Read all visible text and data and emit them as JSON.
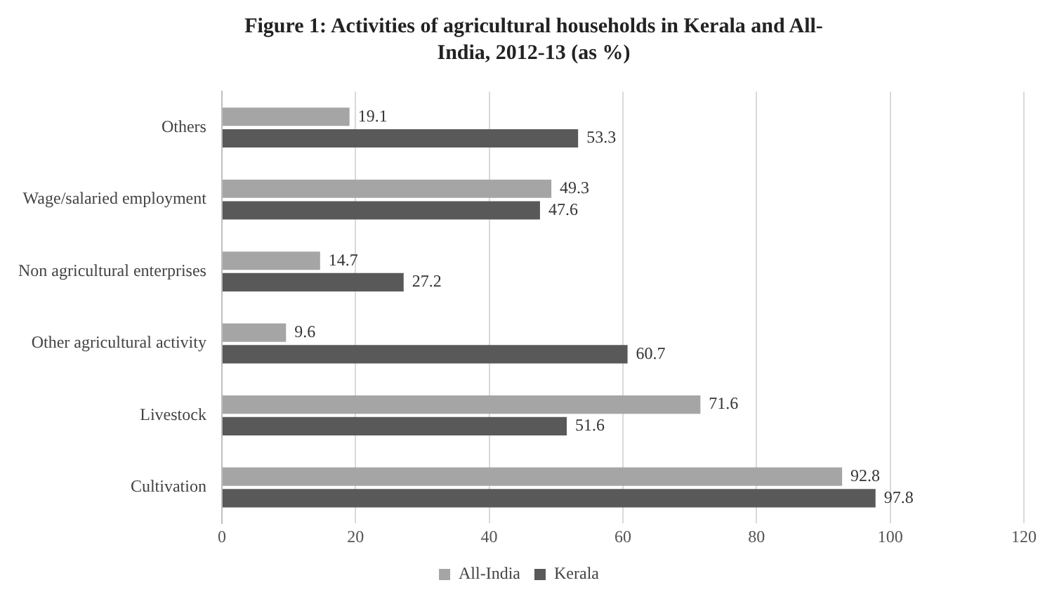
{
  "chart_data": {
    "type": "bar",
    "orientation": "horizontal",
    "title": "Figure 1: Activities of agricultural households in Kerala and All-India, 2012-13 (as %)",
    "categories": [
      "Others",
      "Wage/salaried employment",
      "Non agricultural enterprises",
      "Other agricultural activity",
      "Livestock",
      "Cultivation"
    ],
    "series": [
      {
        "name": "All-India",
        "color": "#a5a5a5",
        "values": [
          19.1,
          49.3,
          14.7,
          9.6,
          71.6,
          92.8
        ]
      },
      {
        "name": "Kerala",
        "color": "#595959",
        "values": [
          53.3,
          47.6,
          27.2,
          60.7,
          51.6,
          97.8
        ]
      }
    ],
    "xlim": [
      0,
      120
    ],
    "xticks": [
      0,
      20,
      40,
      60,
      80,
      100,
      120
    ],
    "grid": "x",
    "legend": "bottom",
    "data_labels": true
  }
}
